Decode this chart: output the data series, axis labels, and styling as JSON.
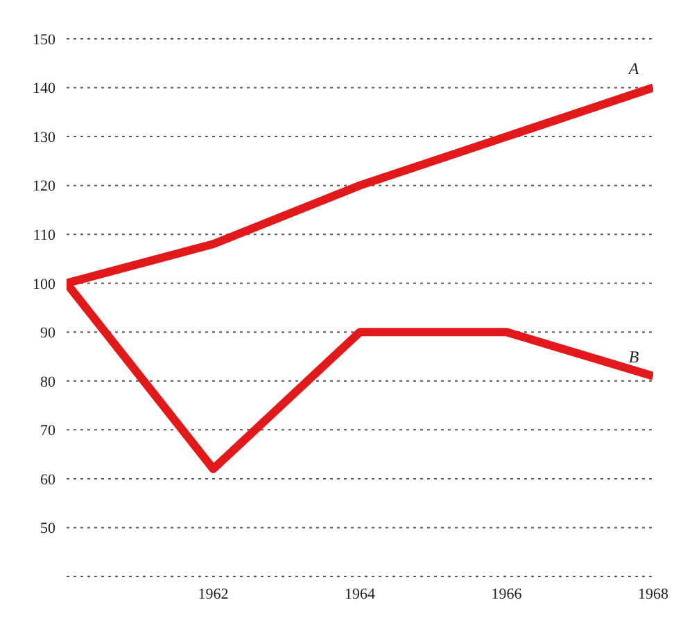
{
  "chart_data": {
    "type": "line",
    "x": [
      1960,
      1962,
      1964,
      1966,
      1968
    ],
    "series": [
      {
        "name": "A",
        "color": "#e2191b",
        "values": [
          100,
          108,
          120,
          130,
          140
        ]
      },
      {
        "name": "B",
        "color": "#e2191b",
        "values": [
          100,
          62,
          90,
          90,
          81
        ]
      }
    ],
    "xlim": [
      1960,
      1968
    ],
    "xticks": [
      1962,
      1964,
      1966,
      1968
    ],
    "ylim": [
      40,
      150
    ],
    "yticks": [
      50,
      60,
      70,
      80,
      90,
      100,
      110,
      120,
      130,
      140,
      150
    ],
    "grid": "y",
    "marker": "none",
    "line_style": "solid"
  }
}
